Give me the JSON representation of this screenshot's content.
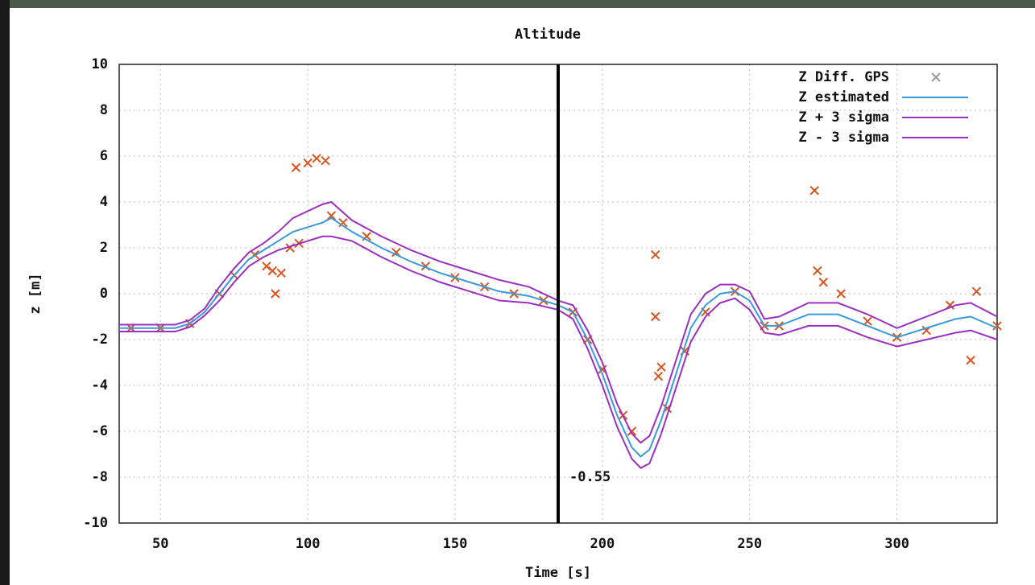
{
  "chart_data": {
    "type": "line",
    "title": "Altitude",
    "x_label": "Time [s]",
    "y_label": "z [m]",
    "annotation": "-0.55",
    "vline": 185,
    "xlim": [
      36,
      334
    ],
    "xticks": [
      50,
      100,
      150,
      200,
      250,
      300
    ],
    "ylim": [
      -10,
      10
    ],
    "yticks": [
      -10,
      -8,
      -6,
      -4,
      -2,
      0,
      2,
      4,
      6,
      8,
      10
    ],
    "grid": true,
    "legend": "upper right",
    "x": [
      36,
      45,
      55,
      60,
      65,
      70,
      75,
      80,
      85,
      90,
      95,
      100,
      105,
      108,
      115,
      125,
      135,
      145,
      155,
      165,
      175,
      185,
      190,
      195,
      200,
      205,
      210,
      213,
      216,
      220,
      225,
      230,
      235,
      240,
      245,
      250,
      255,
      260,
      270,
      280,
      290,
      300,
      310,
      320,
      325,
      334
    ],
    "series": [
      {
        "name": "Z Diff. GPS",
        "color": "#d9541e",
        "kind": "scatter",
        "x": [
          40,
          50,
          60,
          70,
          75,
          82,
          86,
          88,
          89,
          91,
          94,
          97,
          96,
          100,
          103,
          106,
          108,
          112,
          120,
          130,
          140,
          150,
          160,
          170,
          180,
          190,
          195,
          200,
          207,
          210,
          218,
          218,
          219,
          220,
          222,
          228,
          235,
          245,
          255,
          260,
          272,
          273,
          275,
          281,
          290,
          300,
          310,
          318,
          325,
          327,
          334
        ],
        "values": [
          -1.5,
          -1.5,
          -1.3,
          0,
          0.8,
          1.7,
          1.2,
          1.0,
          0,
          0.9,
          2.0,
          2.2,
          5.5,
          5.7,
          5.9,
          5.8,
          3.4,
          3.1,
          2.5,
          1.8,
          1.2,
          0.7,
          0.3,
          0,
          -0.3,
          -0.8,
          -2,
          -3.3,
          -5.3,
          -6,
          1.7,
          -1,
          -3.6,
          -3.2,
          -5,
          -2.5,
          -0.8,
          0.1,
          -1.4,
          -1.4,
          4.5,
          1,
          0.5,
          0,
          -1.2,
          -1.9,
          -1.6,
          -0.5,
          -2.9,
          0.1,
          -1.4
        ]
      },
      {
        "name": "Z estimated",
        "color": "#3a9ad9",
        "values": [
          -1.5,
          -1.5,
          -1.5,
          -1.3,
          -0.8,
          0,
          0.8,
          1.5,
          1.9,
          2.3,
          2.7,
          2.9,
          3.1,
          3.3,
          2.7,
          2,
          1.4,
          0.9,
          0.5,
          0.1,
          -0.1,
          -0.5,
          -0.8,
          -2,
          -3.5,
          -5.3,
          -6.7,
          -7.1,
          -6.8,
          -5.5,
          -3.5,
          -1.5,
          -0.5,
          0,
          0.1,
          -0.3,
          -1.4,
          -1.4,
          -0.9,
          -0.9,
          -1.4,
          -1.9,
          -1.5,
          -1.1,
          -1,
          -1.5
        ]
      },
      {
        "name": "Z + 3 sigma",
        "color": "#9b2fc0",
        "values": [
          -1.35,
          -1.35,
          -1.35,
          -1.15,
          -0.65,
          0.3,
          1.1,
          1.8,
          2.2,
          2.7,
          3.3,
          3.6,
          3.9,
          4.0,
          3.2,
          2.5,
          1.9,
          1.4,
          1.0,
          0.6,
          0.3,
          -0.3,
          -0.5,
          -1.6,
          -3.0,
          -4.8,
          -6.1,
          -6.5,
          -6.2,
          -4.9,
          -2.9,
          -0.9,
          0,
          0.4,
          0.4,
          0.1,
          -1.1,
          -1.0,
          -0.4,
          -0.4,
          -0.9,
          -1.5,
          -1.0,
          -0.5,
          -0.4,
          -1.0
        ]
      },
      {
        "name": "Z - 3 sigma",
        "color": "#9b2fc0",
        "values": [
          -1.65,
          -1.65,
          -1.65,
          -1.45,
          -0.95,
          -0.3,
          0.5,
          1.2,
          1.6,
          1.9,
          2.1,
          2.3,
          2.5,
          2.5,
          2.3,
          1.6,
          1.0,
          0.5,
          0.1,
          -0.3,
          -0.4,
          -0.7,
          -1.1,
          -2.4,
          -4.0,
          -5.8,
          -7.2,
          -7.6,
          -7.4,
          -6.1,
          -4.1,
          -2.1,
          -1.0,
          -0.4,
          -0.2,
          -0.7,
          -1.7,
          -1.8,
          -1.4,
          -1.4,
          -1.9,
          -2.3,
          -2.0,
          -1.7,
          -1.6,
          -2.0
        ]
      }
    ]
  }
}
